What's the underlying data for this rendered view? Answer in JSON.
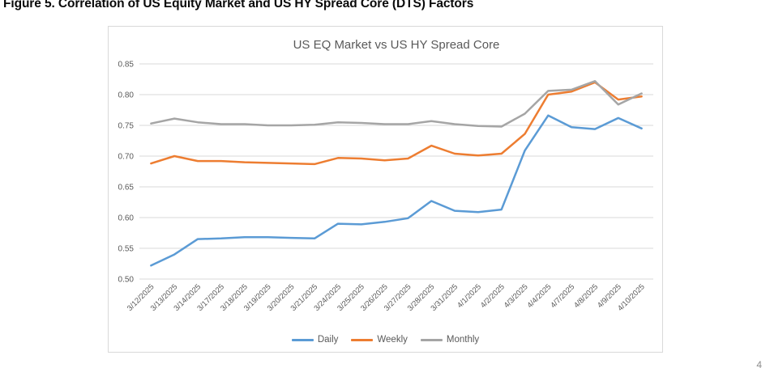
{
  "figure_title": "Figure 5. Correlation of US Equity Market and US HY Spread Core (DTS) Factors",
  "page_number": "4",
  "chart_data": {
    "type": "line",
    "title": "US EQ Market vs US HY Spread Core",
    "xlabel": "",
    "ylabel": "",
    "ylim": [
      0.5,
      0.85
    ],
    "ytick_step": 0.05,
    "grid": true,
    "legend_position": "bottom",
    "categories": [
      "3/12/2025",
      "3/13/2025",
      "3/14/2025",
      "3/17/2025",
      "3/18/2025",
      "3/19/2025",
      "3/20/2025",
      "3/21/2025",
      "3/24/2025",
      "3/25/2025",
      "3/26/2025",
      "3/27/2025",
      "3/28/2025",
      "3/31/2025",
      "4/1/2025",
      "4/2/2025",
      "4/3/2025",
      "4/4/2025",
      "4/7/2025",
      "4/8/2025",
      "4/9/2025",
      "4/10/2025"
    ],
    "series": [
      {
        "name": "Daily",
        "color": "#5B9BD5",
        "values": [
          0.522,
          0.54,
          0.565,
          0.566,
          0.568,
          0.568,
          0.567,
          0.566,
          0.59,
          0.589,
          0.593,
          0.599,
          0.627,
          0.611,
          0.609,
          0.613,
          0.709,
          0.766,
          0.747,
          0.744,
          0.762,
          0.745
        ]
      },
      {
        "name": "Weekly",
        "color": "#ED7D31",
        "values": [
          0.688,
          0.7,
          0.692,
          0.692,
          0.69,
          0.689,
          0.688,
          0.687,
          0.697,
          0.696,
          0.693,
          0.696,
          0.717,
          0.704,
          0.701,
          0.704,
          0.736,
          0.8,
          0.805,
          0.82,
          0.792,
          0.797
        ]
      },
      {
        "name": "Monthly",
        "color": "#A5A5A5",
        "values": [
          0.753,
          0.761,
          0.755,
          0.752,
          0.752,
          0.75,
          0.75,
          0.751,
          0.755,
          0.754,
          0.752,
          0.752,
          0.757,
          0.752,
          0.749,
          0.748,
          0.769,
          0.806,
          0.808,
          0.822,
          0.784,
          0.802
        ]
      }
    ],
    "styles": {
      "grid_color": "#d9d9d9",
      "axis_text_color": "#595959",
      "title_color": "#595959",
      "line_width": 2.5
    }
  }
}
